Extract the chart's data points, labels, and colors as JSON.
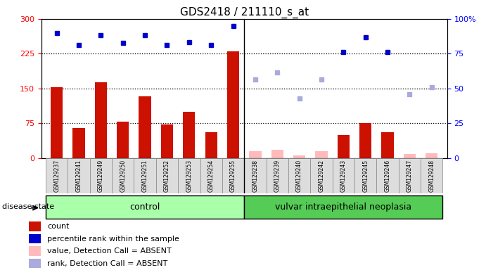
{
  "title": "GDS2418 / 211110_s_at",
  "samples": [
    "GSM129237",
    "GSM129241",
    "GSM129249",
    "GSM129250",
    "GSM129251",
    "GSM129252",
    "GSM129253",
    "GSM129254",
    "GSM129255",
    "GSM129238",
    "GSM129239",
    "GSM129240",
    "GSM129242",
    "GSM129243",
    "GSM129245",
    "GSM129246",
    "GSM129247",
    "GSM129248"
  ],
  "groups": [
    "control",
    "vulvar intraepithelial neoplasia"
  ],
  "group_sizes": [
    9,
    9
  ],
  "red_bars": [
    152,
    65,
    163,
    78,
    133,
    72,
    100,
    55,
    230,
    null,
    null,
    null,
    null,
    50,
    75,
    55,
    null,
    null
  ],
  "blue_squares": [
    270,
    243,
    265,
    248,
    265,
    243,
    250,
    243,
    285,
    null,
    null,
    null,
    null,
    228,
    260,
    228,
    null,
    null
  ],
  "absent_value_bars": [
    null,
    null,
    null,
    null,
    null,
    null,
    null,
    null,
    null,
    14,
    18,
    5,
    14,
    null,
    null,
    null,
    8,
    10
  ],
  "absent_rank_squares": [
    null,
    null,
    null,
    null,
    null,
    null,
    null,
    null,
    null,
    170,
    185,
    128,
    170,
    null,
    null,
    null,
    138,
    152
  ],
  "ylim_left": [
    0,
    300
  ],
  "ylim_right": [
    0,
    100
  ],
  "yticks_left": [
    0,
    75,
    150,
    225,
    300
  ],
  "yticks_right": [
    0,
    25,
    50,
    75,
    100
  ],
  "bar_color": "#cc1100",
  "absent_bar_color": "#ffbbbb",
  "blue_color": "#0000cc",
  "absent_rank_color": "#aaaadd",
  "legend_items": [
    {
      "label": "count",
      "color": "#cc1100"
    },
    {
      "label": "percentile rank within the sample",
      "color": "#0000cc"
    },
    {
      "label": "value, Detection Call = ABSENT",
      "color": "#ffbbbb"
    },
    {
      "label": "rank, Detection Call = ABSENT",
      "color": "#aaaadd"
    }
  ],
  "control_bg": "#aaffaa",
  "disease_bg": "#55cc55",
  "bar_width": 0.55
}
